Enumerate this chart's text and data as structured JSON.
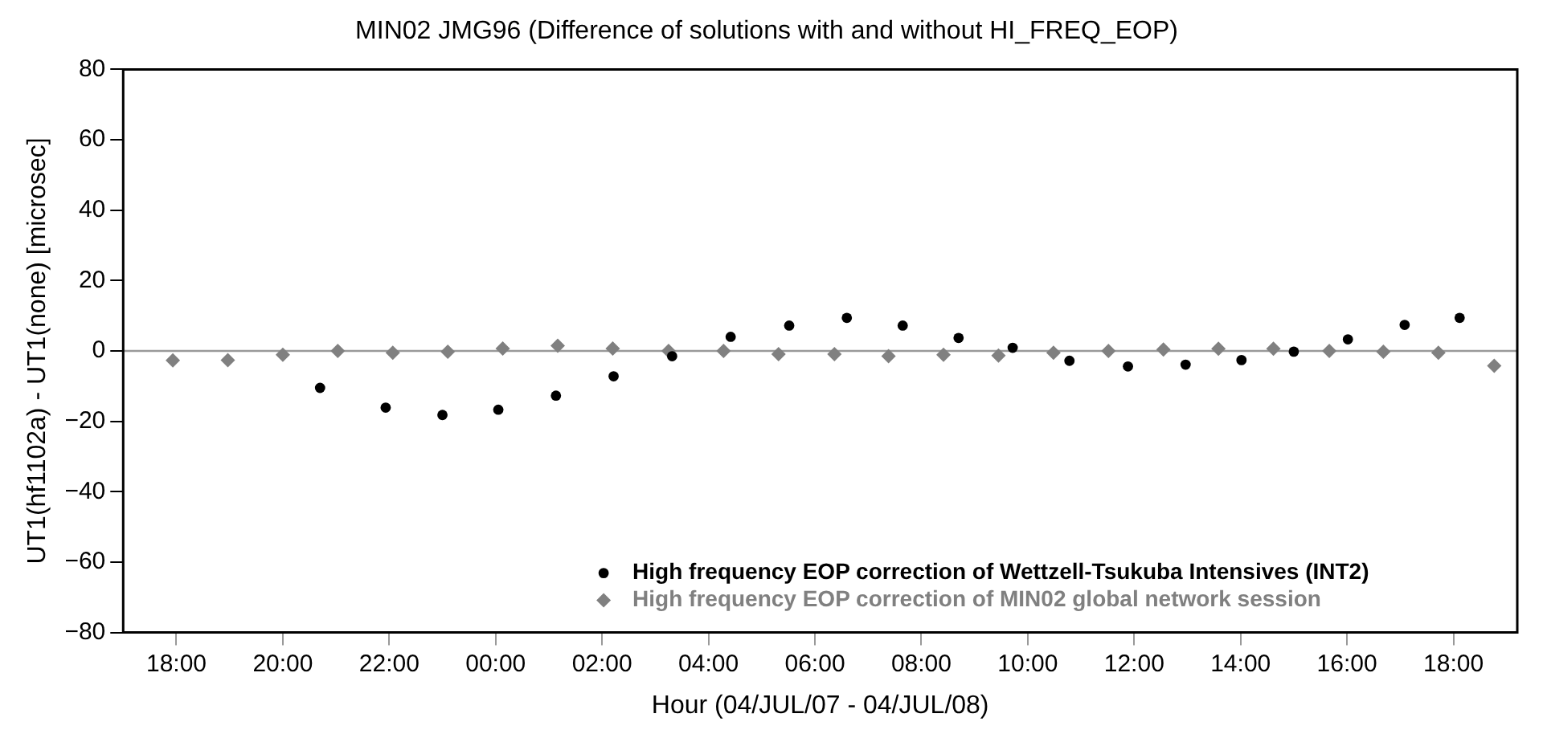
{
  "chart_data": {
    "type": "scatter",
    "title": "MIN02 JMG96 (Difference of solutions with and without HI_FREQ_EOP)",
    "xlabel": "Hour (04/JUL/07 - 04/JUL/08)",
    "ylabel": "UT1(hf1102a) - UT1(none) [microsec]",
    "xlim": [
      "--07-07T17:00",
      "--07-08T19:12"
    ],
    "xticks": [
      {
        "value": "--07-07T18:00",
        "label": "18:00"
      },
      {
        "value": "--07-07T20:00",
        "label": "20:00"
      },
      {
        "value": "--07-07T22:00",
        "label": "22:00"
      },
      {
        "value": "--07-08T00:00",
        "label": "00:00"
      },
      {
        "value": "--07-08T02:00",
        "label": "02:00"
      },
      {
        "value": "--07-08T04:00",
        "label": "04:00"
      },
      {
        "value": "--07-08T06:00",
        "label": "06:00"
      },
      {
        "value": "--07-08T08:00",
        "label": "08:00"
      },
      {
        "value": "--07-08T10:00",
        "label": "10:00"
      },
      {
        "value": "--07-08T12:00",
        "label": "12:00"
      },
      {
        "value": "--07-08T14:00",
        "label": "14:00"
      },
      {
        "value": "--07-08T16:00",
        "label": "16:00"
      },
      {
        "value": "--07-08T18:00",
        "label": "18:00"
      }
    ],
    "ylim": [
      -80,
      80
    ],
    "yticks": [
      -80,
      -60,
      -40,
      -20,
      0,
      20,
      40,
      60,
      80
    ],
    "grid": false,
    "legend": "bottom right",
    "ref_lines": [
      {
        "axis": "y",
        "value": 0,
        "color": "#999999"
      }
    ],
    "series": [
      {
        "name": "High frequency EOP correction of Wettzell-Tsukuba Intensives (INT2)",
        "color": "#000000",
        "marker": "circle",
        "x": [
          "--07-07T20:42",
          "--07-07T21:56",
          "--07-07T23:00",
          "--07-08T00:03",
          "--07-08T01:08",
          "--07-08T02:13",
          "--07-08T03:19",
          "--07-08T04:25",
          "--07-08T05:31",
          "--07-08T06:36",
          "--07-08T07:39",
          "--07-08T08:42",
          "--07-08T09:43",
          "--07-08T10:47",
          "--07-08T11:53",
          "--07-08T12:58",
          "--07-08T14:01",
          "--07-08T15:00",
          "--07-08T16:01",
          "--07-08T17:05",
          "--07-08T18:07"
        ],
        "values": [
          -10.5,
          -16.1,
          -18.2,
          -16.7,
          -12.7,
          -7.2,
          -1.5,
          4.0,
          7.2,
          9.4,
          7.2,
          3.7,
          0.9,
          -2.8,
          -4.4,
          -3.9,
          -2.6,
          -0.2,
          3.3,
          7.4,
          9.4
        ]
      },
      {
        "name": "High frequency EOP correction of MIN02 global network session",
        "color": "#808080",
        "marker": "diamond",
        "x": [
          "--07-07T17:56",
          "--07-07T18:58",
          "--07-07T20:00",
          "--07-07T21:02",
          "--07-07T22:04",
          "--07-07T23:06",
          "--07-08T00:08",
          "--07-08T01:10",
          "--07-08T02:12",
          "--07-08T03:15",
          "--07-08T04:17",
          "--07-08T05:19",
          "--07-08T06:22",
          "--07-08T07:23",
          "--07-08T08:25",
          "--07-08T09:27",
          "--07-08T10:29",
          "--07-08T11:31",
          "--07-08T12:33",
          "--07-08T13:35",
          "--07-08T14:37",
          "--07-08T15:40",
          "--07-08T16:41",
          "--07-08T17:43",
          "--07-08T18:46"
        ],
        "values": [
          -2.7,
          -2.6,
          -1.1,
          0,
          -0.5,
          -0.2,
          0.7,
          1.5,
          0.7,
          0,
          0,
          -0.9,
          -0.9,
          -1.5,
          -1.1,
          -1.3,
          -0.5,
          0,
          0.4,
          0.6,
          0.6,
          0,
          -0.2,
          -0.5,
          -4.2
        ]
      }
    ]
  }
}
